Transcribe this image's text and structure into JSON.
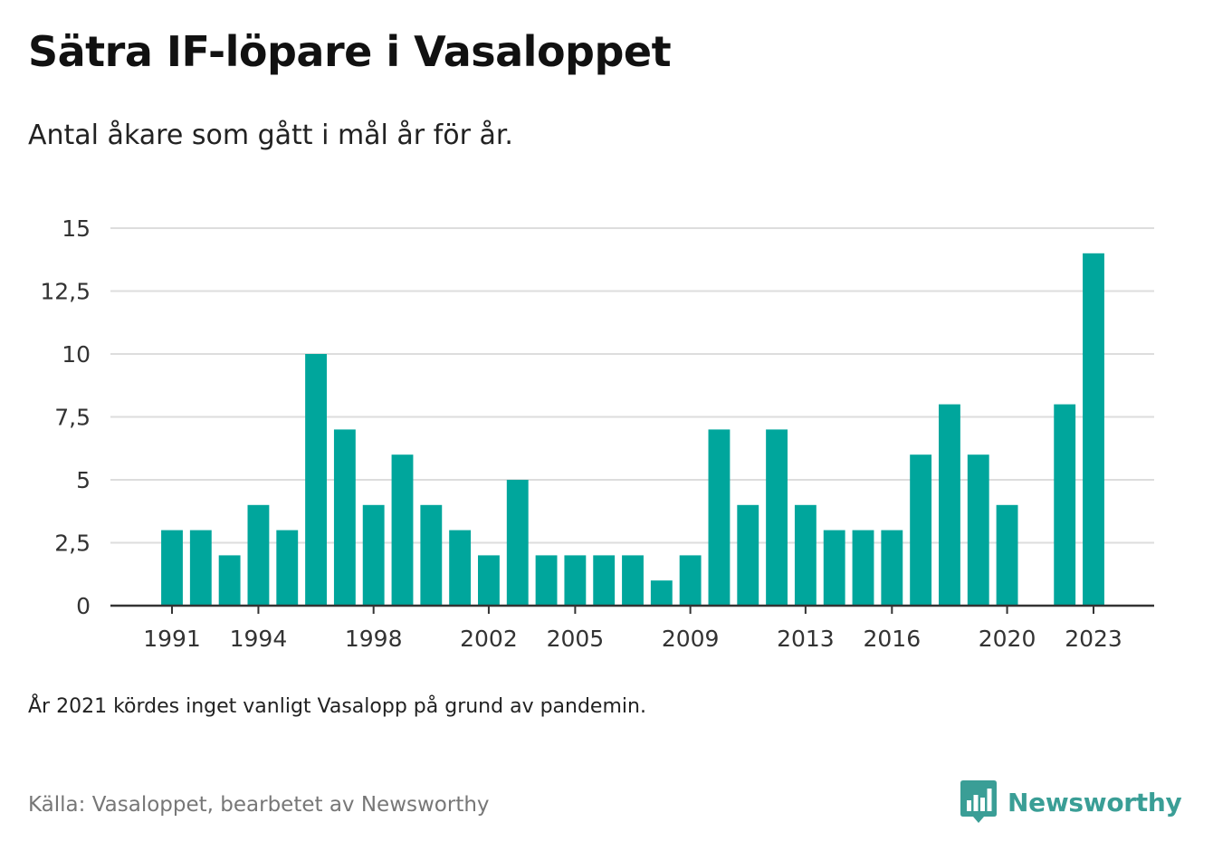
{
  "header": {
    "title": "Sätra IF-löpare i Vasaloppet",
    "subtitle": "Antal åkare som gått i mål år för år."
  },
  "footer": {
    "note": "År 2021 kördes inget vanligt Vasalopp på grund av pandemin.",
    "source": "Källa: Vasaloppet, bearbetet av Newsworthy",
    "brand": "Newsworthy"
  },
  "colors": {
    "bar": "#00a69c",
    "grid": "#dddddd",
    "axis": "#333333",
    "brand": "#3a9e96"
  },
  "icons": {
    "brand_logo": "bar-chart-speech-bubble-icon"
  },
  "chart_data": {
    "type": "bar",
    "title": "Sätra IF-löpare i Vasaloppet",
    "subtitle": "Antal åkare som gått i mål år för år.",
    "categories": [
      1991,
      1992,
      1993,
      1994,
      1995,
      1996,
      1997,
      1998,
      1999,
      2000,
      2001,
      2002,
      2003,
      2004,
      2005,
      2006,
      2007,
      2008,
      2009,
      2010,
      2011,
      2012,
      2013,
      2014,
      2015,
      2016,
      2017,
      2018,
      2019,
      2020,
      2021,
      2022,
      2023
    ],
    "values": [
      3,
      3,
      2,
      4,
      3,
      10,
      7,
      4,
      6,
      4,
      3,
      2,
      5,
      2,
      2,
      2,
      2,
      1,
      2,
      7,
      4,
      7,
      4,
      3,
      3,
      3,
      6,
      8,
      6,
      4,
      null,
      8,
      14
    ],
    "x_tick_labels": [
      "1991",
      "1994",
      "1998",
      "2002",
      "2005",
      "2009",
      "2013",
      "2016",
      "2020",
      "2023"
    ],
    "y_ticks": [
      0,
      2.5,
      5,
      7.5,
      10,
      12.5,
      15
    ],
    "y_tick_labels": [
      "0",
      "2,5",
      "5",
      "7,5",
      "10",
      "12,5",
      "15"
    ],
    "ylim": [
      0,
      15
    ],
    "xlabel": "",
    "ylabel": "",
    "grid": true,
    "legend": "none"
  }
}
